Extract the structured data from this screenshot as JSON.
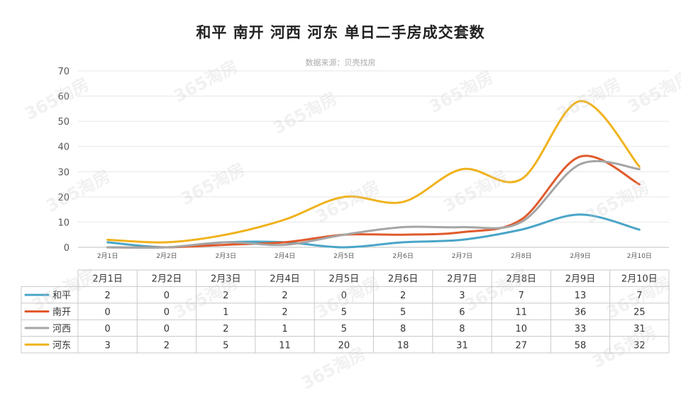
{
  "chart_data": {
    "type": "line",
    "title": "和平 南开 河西 河东 单日二手房成交套数",
    "subtitle": "数据来源：贝壳找房",
    "categories": [
      "2月1日",
      "2月2日",
      "2月3日",
      "2月4日",
      "2月5日",
      "2月6日",
      "2月7日",
      "2月8日",
      "2月9日",
      "2月10日"
    ],
    "ylim": [
      0,
      70
    ],
    "yticks": [
      0,
      10,
      20,
      30,
      40,
      50,
      60,
      70
    ],
    "grid": true,
    "legend_placement": "data-table",
    "series": [
      {
        "name": "和平",
        "color": "#4aa5c8",
        "values": [
          2,
          0,
          2,
          2,
          0,
          2,
          3,
          7,
          13,
          7
        ]
      },
      {
        "name": "南开",
        "color": "#e05a2b",
        "values": [
          0,
          0,
          1,
          2,
          5,
          5,
          6,
          11,
          36,
          25
        ]
      },
      {
        "name": "河西",
        "color": "#a5a5a5",
        "values": [
          0,
          0,
          2,
          1,
          5,
          8,
          8,
          10,
          33,
          31
        ]
      },
      {
        "name": "河东",
        "color": "#f0b21c",
        "values": [
          3,
          2,
          5,
          11,
          20,
          18,
          31,
          27,
          58,
          32
        ]
      }
    ]
  },
  "watermark": {
    "text": "365淘房"
  }
}
